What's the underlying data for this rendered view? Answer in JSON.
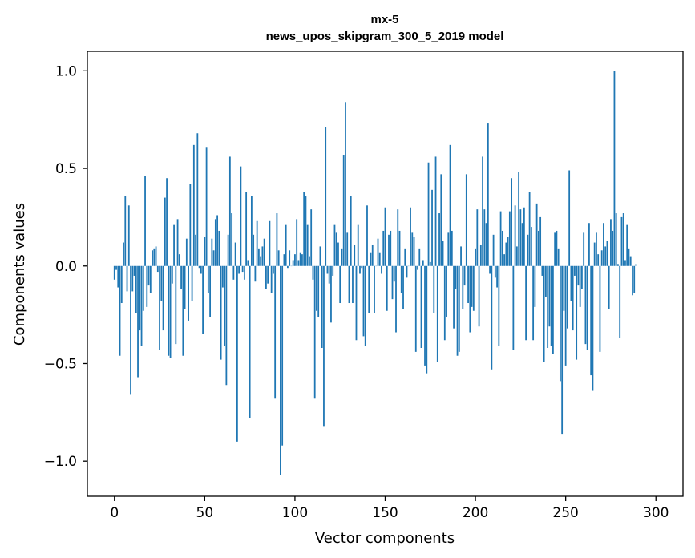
{
  "chart_data": {
    "type": "bar",
    "title": [
      "mx-5",
      "news_upos_skipgram_300_5_2019 model"
    ],
    "xlabel": "Vector components",
    "ylabel": "Components values",
    "xlim": [
      -15,
      315
    ],
    "ylim": [
      -1.18,
      1.1
    ],
    "xticks": [
      0,
      50,
      100,
      150,
      200,
      250,
      300
    ],
    "xtick_labels": [
      "0",
      "50",
      "100",
      "150",
      "200",
      "250",
      "300"
    ],
    "yticks": [
      -1.0,
      -0.5,
      0.0,
      0.5,
      1.0
    ],
    "ytick_labels": [
      "−1.0",
      "−0.5",
      "0.0",
      "0.5",
      "1.0"
    ],
    "bar_color": "#1f77b4",
    "grid": false,
    "legend": "none",
    "series": [
      {
        "name": "mx-5",
        "values": [
          -0.07,
          -0.02,
          -0.11,
          -0.46,
          -0.19,
          0.12,
          0.36,
          -0.13,
          0.31,
          -0.66,
          -0.13,
          -0.05,
          -0.24,
          -0.57,
          -0.33,
          -0.41,
          -0.23,
          0.46,
          -0.21,
          -0.1,
          -0.14,
          0.08,
          0.09,
          0.1,
          -0.03,
          -0.43,
          -0.18,
          -0.33,
          0.35,
          0.45,
          -0.46,
          -0.47,
          -0.09,
          0.21,
          -0.4,
          0.24,
          0.06,
          -0.12,
          -0.46,
          -0.22,
          0.14,
          -0.28,
          0.42,
          -0.18,
          0.62,
          0.16,
          0.68,
          -0.01,
          -0.04,
          -0.35,
          0.15,
          0.61,
          -0.14,
          -0.26,
          0.14,
          0.08,
          0.24,
          0.26,
          0.18,
          -0.48,
          -0.11,
          -0.41,
          -0.61,
          0.16,
          0.56,
          0.27,
          -0.07,
          0.12,
          -0.9,
          -0.04,
          0.51,
          -0.03,
          -0.07,
          0.38,
          0.03,
          -0.78,
          0.36,
          0.16,
          -0.08,
          0.23,
          0.09,
          0.05,
          0.1,
          0.14,
          -0.12,
          -0.09,
          0.23,
          -0.14,
          -0.04,
          -0.68,
          0.27,
          0.08,
          -1.07,
          -0.92,
          0.06,
          0.21,
          -0.01,
          0.08,
          0.0,
          0.03,
          0.06,
          0.24,
          0.03,
          0.07,
          0.06,
          0.38,
          0.36,
          0.21,
          0.05,
          0.29,
          -0.07,
          -0.68,
          -0.23,
          -0.26,
          0.1,
          -0.42,
          -0.82,
          0.71,
          -0.04,
          -0.09,
          -0.29,
          -0.05,
          0.21,
          0.17,
          0.12,
          -0.19,
          0.09,
          0.57,
          0.84,
          0.17,
          -0.19,
          0.36,
          -0.19,
          0.11,
          -0.38,
          0.21,
          -0.04,
          -0.01,
          -0.36,
          -0.41,
          0.31,
          -0.24,
          0.07,
          0.11,
          -0.24,
          0.0,
          0.14,
          0.07,
          -0.04,
          0.18,
          0.3,
          -0.23,
          0.16,
          0.18,
          -0.17,
          -0.08,
          -0.34,
          0.29,
          0.18,
          -0.14,
          -0.22,
          0.09,
          -0.06,
          0.0,
          0.3,
          0.17,
          0.15,
          -0.44,
          -0.02,
          0.09,
          -0.42,
          0.03,
          -0.51,
          -0.55,
          0.53,
          0.02,
          0.39,
          -0.24,
          0.56,
          -0.49,
          0.27,
          0.47,
          0.13,
          -0.38,
          -0.26,
          0.17,
          0.62,
          0.18,
          -0.32,
          -0.12,
          -0.46,
          -0.44,
          0.1,
          -0.22,
          -0.1,
          0.47,
          -0.19,
          -0.34,
          -0.21,
          -0.23,
          0.09,
          0.29,
          -0.31,
          0.11,
          0.56,
          0.29,
          0.22,
          0.73,
          -0.04,
          -0.53,
          0.16,
          -0.06,
          -0.11,
          -0.41,
          0.28,
          0.18,
          0.06,
          0.12,
          0.15,
          0.28,
          0.45,
          -0.43,
          0.31,
          0.1,
          0.48,
          0.29,
          0.22,
          0.3,
          -0.38,
          0.16,
          0.38,
          0.2,
          -0.38,
          -0.21,
          0.32,
          0.18,
          0.25,
          -0.05,
          -0.49,
          -0.16,
          -0.42,
          -0.31,
          -0.41,
          -0.45,
          0.17,
          0.18,
          0.09,
          -0.59,
          -0.86,
          -0.23,
          -0.51,
          -0.32,
          0.49,
          -0.18,
          -0.33,
          -0.05,
          -0.48,
          -0.1,
          -0.21,
          -0.12,
          0.17,
          -0.4,
          -0.43,
          0.22,
          -0.56,
          -0.64,
          0.12,
          0.17,
          0.06,
          -0.44,
          0.08,
          0.22,
          0.1,
          0.13,
          -0.22,
          0.24,
          0.18,
          1.0,
          0.27,
          0.01,
          -0.37,
          0.25,
          0.27,
          0.03,
          0.21,
          0.09,
          0.05,
          -0.15,
          -0.14,
          0.01
        ]
      }
    ]
  }
}
